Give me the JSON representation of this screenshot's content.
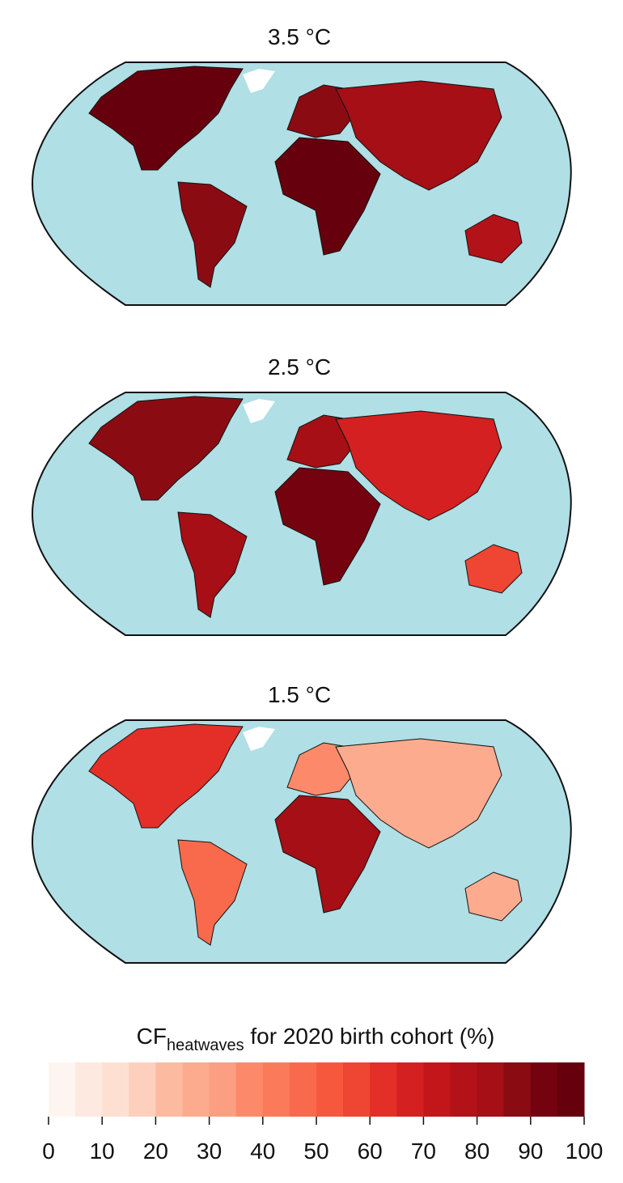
{
  "maps": [
    {
      "title": "3.5 °C",
      "values": [
        95,
        85,
        88,
        97,
        80,
        75
      ]
    },
    {
      "title": "2.5 °C",
      "values": [
        85,
        80,
        80,
        92,
        65,
        55
      ]
    },
    {
      "title": "1.5 °C",
      "values": [
        60,
        45,
        35,
        80,
        25,
        25
      ]
    }
  ],
  "colorbar": {
    "label": "CF",
    "label_sub": "heatwaves",
    "label_rest": " for 2020 birth cohort (%)",
    "lim": [
      0,
      100
    ],
    "ticks": [
      0,
      10,
      20,
      30,
      40,
      50,
      60,
      70,
      80,
      90,
      100
    ],
    "colors": [
      "#fff5f0",
      "#fee9e0",
      "#fee0d2",
      "#fdd0bd",
      "#fcbba1",
      "#fcab8f",
      "#fc9e81",
      "#fc8a6a",
      "#fb7a5a",
      "#f96a4d",
      "#f6583e",
      "#ef4533",
      "#e32f27",
      "#d42020",
      "#c3161b",
      "#b31218",
      "#a50f15",
      "#8b0b13",
      "#75030f",
      "#67000d"
    ]
  }
}
